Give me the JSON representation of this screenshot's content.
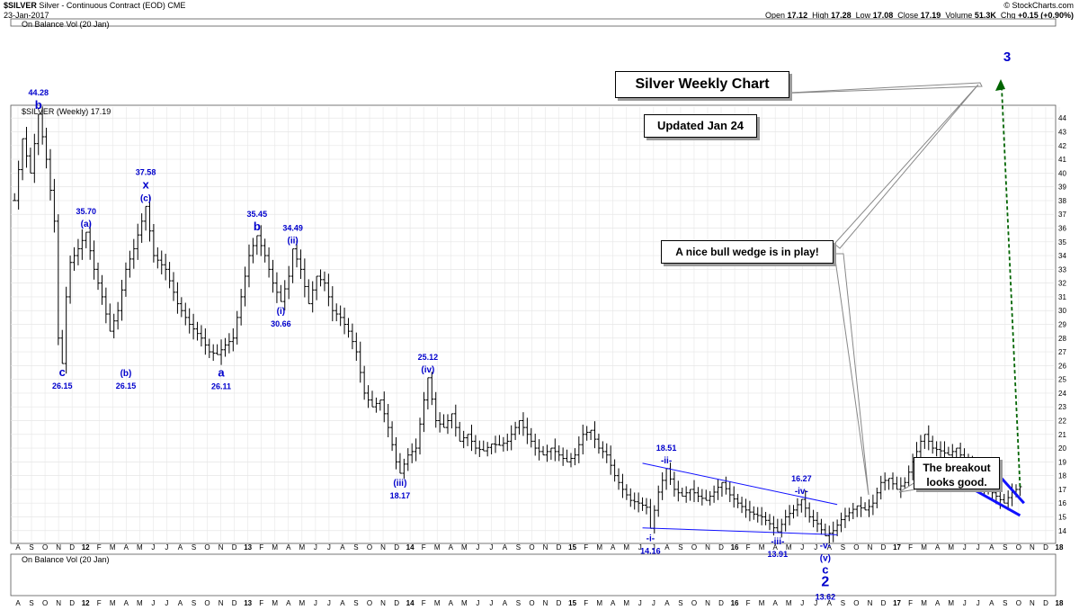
{
  "header": {
    "symbol": "$SILVER",
    "description": "Silver - Continuous Contract (EOD)",
    "exchange": "CME",
    "date": "23-Jan-2017",
    "source": "© StockCharts.com",
    "open_label": "Open",
    "open": "17.12",
    "high_label": "High",
    "high": "17.28",
    "low_label": "Low",
    "low": "17.08",
    "close_label": "Close",
    "close": "17.19",
    "volume_label": "Volume",
    "volume": "51.3K",
    "chg_label": "Chg",
    "chg": "+0.15 (+0.90%)"
  },
  "panels": {
    "top_indicator": "On Balance Vol (20 Jan)",
    "price_legend": "$SILVER (Weekly) 17.19",
    "bottom_indicator": "On Balance Vol (20 Jan)"
  },
  "callouts": {
    "title": "Silver Weekly Chart",
    "updated": "Updated Jan 24",
    "wedge": "A nice bull wedge is in play!",
    "breakout_line1": "The breakout",
    "breakout_line2": "looks good."
  },
  "colors": {
    "bars": "#000000",
    "wave_labels": "#0000cc",
    "trendline": "#1010ff",
    "forecast": "#006400",
    "grid": "#e6e6e6"
  },
  "chart_data": {
    "type": "ohlc",
    "title": "Silver Weekly Chart",
    "x_axis_labels": [
      "A",
      "S",
      "O",
      "N",
      "D",
      "12",
      "F",
      "M",
      "A",
      "M",
      "J",
      "J",
      "A",
      "S",
      "O",
      "N",
      "D",
      "13",
      "F",
      "M",
      "A",
      "M",
      "J",
      "J",
      "A",
      "S",
      "O",
      "N",
      "D",
      "14",
      "F",
      "M",
      "A",
      "M",
      "J",
      "J",
      "A",
      "S",
      "O",
      "N",
      "D",
      "15",
      "F",
      "M",
      "A",
      "M",
      "J",
      "J",
      "A",
      "S",
      "O",
      "N",
      "D",
      "16",
      "F",
      "M",
      "A",
      "M",
      "J",
      "J",
      "A",
      "S",
      "O",
      "N",
      "D",
      "17",
      "F",
      "M",
      "A",
      "M",
      "J",
      "J",
      "A",
      "S",
      "O",
      "N",
      "D",
      "18"
    ],
    "y_ticks": [
      14,
      15,
      16,
      17,
      18,
      19,
      20,
      21,
      22,
      23,
      24,
      25,
      26,
      27,
      28,
      29,
      30,
      31,
      32,
      33,
      34,
      35,
      36,
      37,
      38,
      39,
      40,
      41,
      42,
      43,
      44
    ],
    "ylim": [
      13.2,
      44.8
    ],
    "anchors": [
      {
        "w": 0,
        "p": 38
      },
      {
        "w": 2,
        "p": 42.5
      },
      {
        "w": 4,
        "p": 40
      },
      {
        "w": 6,
        "p": 44.28
      },
      {
        "w": 8,
        "p": 41
      },
      {
        "w": 10,
        "p": 36.5
      },
      {
        "w": 11,
        "p": 28
      },
      {
        "w": 12,
        "p": 26.15
      },
      {
        "w": 13,
        "p": 31
      },
      {
        "w": 14,
        "p": 33.5
      },
      {
        "w": 16,
        "p": 34.5
      },
      {
        "w": 18,
        "p": 35.7
      },
      {
        "w": 20,
        "p": 33
      },
      {
        "w": 22,
        "p": 31
      },
      {
        "w": 24,
        "p": 28.5
      },
      {
        "w": 26,
        "p": 30
      },
      {
        "w": 28,
        "p": 33
      },
      {
        "w": 30,
        "p": 34.5
      },
      {
        "w": 32,
        "p": 36.5
      },
      {
        "w": 33,
        "p": 37.58
      },
      {
        "w": 35,
        "p": 34
      },
      {
        "w": 38,
        "p": 33
      },
      {
        "w": 41,
        "p": 30.5
      },
      {
        "w": 44,
        "p": 29
      },
      {
        "w": 47,
        "p": 28
      },
      {
        "w": 49,
        "p": 27
      },
      {
        "w": 51,
        "p": 26.8
      },
      {
        "w": 53,
        "p": 27.5
      },
      {
        "w": 55,
        "p": 28
      },
      {
        "w": 57,
        "p": 31
      },
      {
        "w": 59,
        "p": 34
      },
      {
        "w": 61,
        "p": 35.45
      },
      {
        "w": 63,
        "p": 34
      },
      {
        "w": 65,
        "p": 32
      },
      {
        "w": 67,
        "p": 30.66
      },
      {
        "w": 69,
        "p": 32.5
      },
      {
        "w": 70,
        "p": 34.49
      },
      {
        "w": 72,
        "p": 33
      },
      {
        "w": 74,
        "p": 30.5
      },
      {
        "w": 76,
        "p": 32.5
      },
      {
        "w": 78,
        "p": 32
      },
      {
        "w": 80,
        "p": 30
      },
      {
        "w": 82,
        "p": 29.5
      },
      {
        "w": 84,
        "p": 28.5
      },
      {
        "w": 86,
        "p": 27
      },
      {
        "w": 88,
        "p": 24
      },
      {
        "w": 90,
        "p": 23
      },
      {
        "w": 92,
        "p": 23.5
      },
      {
        "w": 94,
        "p": 21.5
      },
      {
        "w": 96,
        "p": 19
      },
      {
        "w": 97,
        "p": 18.17
      },
      {
        "w": 99,
        "p": 19.5
      },
      {
        "w": 101,
        "p": 20
      },
      {
        "w": 103,
        "p": 23.5
      },
      {
        "w": 104,
        "p": 25.12
      },
      {
        "w": 106,
        "p": 22
      },
      {
        "w": 108,
        "p": 21.5
      },
      {
        "w": 110,
        "p": 22.5
      },
      {
        "w": 112,
        "p": 20.5
      },
      {
        "w": 114,
        "p": 21
      },
      {
        "w": 116,
        "p": 20
      },
      {
        "w": 118,
        "p": 19.8
      },
      {
        "w": 120,
        "p": 20.3
      },
      {
        "w": 122,
        "p": 20.2
      },
      {
        "w": 124,
        "p": 20.5
      },
      {
        "w": 126,
        "p": 21.5
      },
      {
        "w": 127,
        "p": 22
      },
      {
        "w": 129,
        "p": 21
      },
      {
        "w": 131,
        "p": 20
      },
      {
        "w": 133,
        "p": 19.5
      },
      {
        "w": 135,
        "p": 20
      },
      {
        "w": 137,
        "p": 19.5
      },
      {
        "w": 139,
        "p": 19
      },
      {
        "w": 141,
        "p": 19.5
      },
      {
        "w": 143,
        "p": 21
      },
      {
        "w": 145,
        "p": 21.3
      },
      {
        "w": 147,
        "p": 20
      },
      {
        "w": 149,
        "p": 19.5
      },
      {
        "w": 151,
        "p": 18
      },
      {
        "w": 153,
        "p": 17
      },
      {
        "w": 155,
        "p": 16.2
      },
      {
        "w": 157,
        "p": 16
      },
      {
        "w": 159,
        "p": 15.7
      },
      {
        "w": 160,
        "p": 14.16
      },
      {
        "w": 162,
        "p": 16.8
      },
      {
        "w": 164,
        "p": 18.51
      },
      {
        "w": 166,
        "p": 17
      },
      {
        "w": 168,
        "p": 16.5
      },
      {
        "w": 170,
        "p": 17
      },
      {
        "w": 172,
        "p": 16.5
      },
      {
        "w": 174,
        "p": 16.2
      },
      {
        "w": 176,
        "p": 16.8
      },
      {
        "w": 178,
        "p": 17.5
      },
      {
        "w": 180,
        "p": 16.6
      },
      {
        "w": 182,
        "p": 16
      },
      {
        "w": 184,
        "p": 15.5
      },
      {
        "w": 186,
        "p": 15.2
      },
      {
        "w": 188,
        "p": 15
      },
      {
        "w": 190,
        "p": 14.5
      },
      {
        "w": 192,
        "p": 13.91
      },
      {
        "w": 194,
        "p": 15
      },
      {
        "w": 196,
        "p": 15.5
      },
      {
        "w": 198,
        "p": 16.27
      },
      {
        "w": 200,
        "p": 15
      },
      {
        "w": 202,
        "p": 14.5
      },
      {
        "w": 204,
        "p": 13.62
      },
      {
        "w": 206,
        "p": 14
      },
      {
        "w": 208,
        "p": 14.8
      },
      {
        "w": 210,
        "p": 15.3
      },
      {
        "w": 212,
        "p": 15.8
      },
      {
        "w": 214,
        "p": 15.5
      },
      {
        "w": 216,
        "p": 16
      },
      {
        "w": 218,
        "p": 17.5
      },
      {
        "w": 220,
        "p": 17.8
      },
      {
        "w": 222,
        "p": 17
      },
      {
        "w": 224,
        "p": 17.5
      },
      {
        "w": 226,
        "p": 19
      },
      {
        "w": 228,
        "p": 20.5
      },
      {
        "w": 229,
        "p": 21
      },
      {
        "w": 231,
        "p": 20
      },
      {
        "w": 233,
        "p": 19.8
      },
      {
        "w": 235,
        "p": 19.5
      },
      {
        "w": 237,
        "p": 20
      },
      {
        "w": 239,
        "p": 19
      },
      {
        "w": 241,
        "p": 18.5
      },
      {
        "w": 243,
        "p": 17.5
      },
      {
        "w": 245,
        "p": 17
      },
      {
        "w": 247,
        "p": 16.5
      },
      {
        "w": 249,
        "p": 16
      },
      {
        "w": 251,
        "p": 16.8
      },
      {
        "w": 253,
        "p": 17.19
      }
    ],
    "wave_labels": [
      {
        "w": 6,
        "p": 44.28,
        "label": "b",
        "value": "44.28",
        "side": "above"
      },
      {
        "w": 12,
        "p": 26.15,
        "label": "c",
        "value": "26.15",
        "side": "below"
      },
      {
        "w": 18,
        "p": 35.7,
        "label": "(a)",
        "value": "35.70",
        "side": "above"
      },
      {
        "w": 28,
        "p": 26.15,
        "label": "(b)",
        "value": "26.15",
        "side": "below"
      },
      {
        "w": 33,
        "p": 37.58,
        "label": "x\n(c)",
        "value": "37.58",
        "side": "above"
      },
      {
        "w": 52,
        "p": 26.11,
        "label": "a",
        "value": "26.11",
        "side": "below"
      },
      {
        "w": 61,
        "p": 35.45,
        "label": "b",
        "value": "35.45",
        "side": "above"
      },
      {
        "w": 67,
        "p": 30.66,
        "label": "(i)",
        "value": "30.66",
        "side": "below"
      },
      {
        "w": 70,
        "p": 34.49,
        "label": "(ii)",
        "value": "34.49",
        "side": "above"
      },
      {
        "w": 97,
        "p": 18.17,
        "label": "(iii)",
        "value": "18.17",
        "side": "below"
      },
      {
        "w": 104,
        "p": 25.12,
        "label": "(iv)",
        "value": "25.12",
        "side": "above"
      },
      {
        "w": 160,
        "p": 14.16,
        "label": "-i-",
        "value": "14.16",
        "side": "below"
      },
      {
        "w": 164,
        "p": 18.51,
        "label": "-ii-",
        "value": "18.51",
        "side": "above"
      },
      {
        "w": 192,
        "p": 13.91,
        "label": "-iii-",
        "value": "13.91",
        "side": "below"
      },
      {
        "w": 198,
        "p": 16.27,
        "label": "-iv-",
        "value": "16.27",
        "side": "above"
      },
      {
        "w": 204,
        "p": 13.62,
        "label": "-v-\n(v)\nc\n2",
        "value": "13.62",
        "side": "below"
      }
    ],
    "forecast_label": "3",
    "trendlines": [
      {
        "from": {
          "w": 158,
          "p": 18.9
        },
        "to": {
          "w": 207,
          "p": 15.9
        }
      },
      {
        "from": {
          "w": 158,
          "p": 14.2
        },
        "to": {
          "w": 207,
          "p": 13.7
        }
      },
      {
        "from": {
          "w": 244,
          "p": 19.2
        },
        "to": {
          "w": 254,
          "p": 16
        }
      },
      {
        "from": {
          "w": 240,
          "p": 17.2
        },
        "to": {
          "w": 253,
          "p": 15.1
        }
      }
    ]
  }
}
